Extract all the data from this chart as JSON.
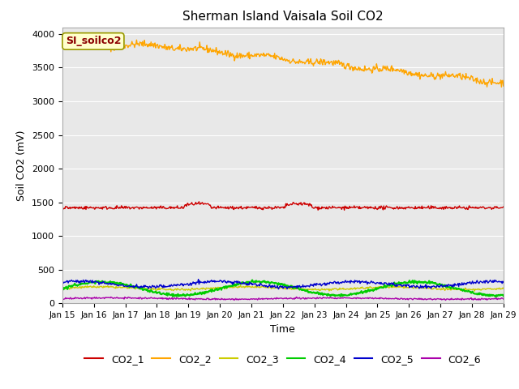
{
  "title": "Sherman Island Vaisala Soil CO2",
  "ylabel": "Soil CO2 (mV)",
  "xlabel": "Time",
  "annotation_text": "SI_soilco2",
  "annotation_color": "#8B0000",
  "annotation_bg": "#FFFFCC",
  "annotation_edge": "#999900",
  "x_ticks": [
    15,
    16,
    17,
    18,
    19,
    20,
    21,
    22,
    23,
    24,
    25,
    26,
    27,
    28,
    29
  ],
  "x_tick_labels": [
    "Jan 15",
    "Jan 16",
    "Jan 17",
    "Jan 18",
    "Jan 19",
    "Jan 20",
    "Jan 21",
    "Jan 22",
    "Jan 23",
    "Jan 24",
    "Jan 25",
    "Jan 26",
    "Jan 27",
    "Jan 28",
    "Jan 29"
  ],
  "ylim": [
    0,
    4100
  ],
  "y_ticks": [
    0,
    500,
    1000,
    1500,
    2000,
    2500,
    3000,
    3500,
    4000
  ],
  "bg_color": "#E8E8E8",
  "fig_color": "#FFFFFF",
  "series": {
    "CO2_1": {
      "color": "#CC0000",
      "lw": 1.0
    },
    "CO2_2": {
      "color": "#FFA500",
      "lw": 1.0
    },
    "CO2_3": {
      "color": "#CCCC00",
      "lw": 1.0
    },
    "CO2_4": {
      "color": "#00CC00",
      "lw": 1.5
    },
    "CO2_5": {
      "color": "#0000CC",
      "lw": 1.0
    },
    "CO2_6": {
      "color": "#AA00AA",
      "lw": 1.0
    }
  },
  "legend_labels": [
    "CO2_1",
    "CO2_2",
    "CO2_3",
    "CO2_4",
    "CO2_5",
    "CO2_6"
  ],
  "legend_colors": [
    "#CC0000",
    "#FFA500",
    "#CCCC00",
    "#00CC00",
    "#0000CC",
    "#AA00AA"
  ]
}
